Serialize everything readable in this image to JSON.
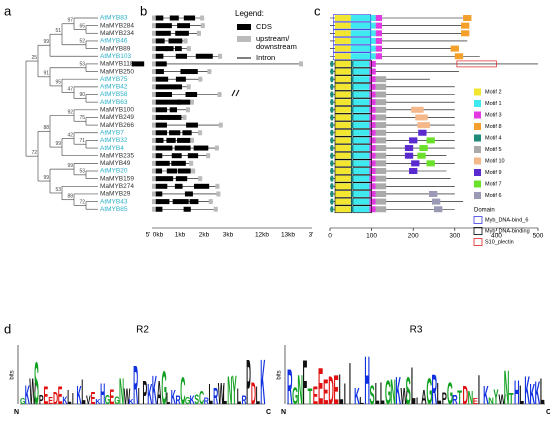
{
  "panels": {
    "a": "a",
    "b": "b",
    "c": "c",
    "d": "d"
  },
  "genes": [
    {
      "name": "AtMYB83",
      "at": true
    },
    {
      "name": "MaMYB284",
      "at": false
    },
    {
      "name": "MaMYB234",
      "at": false
    },
    {
      "name": "AtMYB46",
      "at": true
    },
    {
      "name": "MaMYB89",
      "at": false
    },
    {
      "name": "AtMYB103",
      "at": true
    },
    {
      "name": "MaMYB118",
      "at": false
    },
    {
      "name": "MaMYB250",
      "at": false
    },
    {
      "name": "AtMYB75",
      "at": true
    },
    {
      "name": "AtMYB42",
      "at": true
    },
    {
      "name": "AtMYB58",
      "at": true
    },
    {
      "name": "AtMYB63",
      "at": true
    },
    {
      "name": "MaMYB100",
      "at": false
    },
    {
      "name": "MaMYB249",
      "at": false
    },
    {
      "name": "MaMYB266",
      "at": false
    },
    {
      "name": "AtMYB7",
      "at": true
    },
    {
      "name": "AtMYB32",
      "at": true
    },
    {
      "name": "AtMYB4",
      "at": true
    },
    {
      "name": "MaMYB235",
      "at": false
    },
    {
      "name": "MaMYB49",
      "at": false
    },
    {
      "name": "AtMYB20",
      "at": true
    },
    {
      "name": "MaMYB159",
      "at": false
    },
    {
      "name": "MaMYB274",
      "at": false
    },
    {
      "name": "MaMYB29",
      "at": false
    },
    {
      "name": "AtMYB43",
      "at": true
    },
    {
      "name": "AtMYB85",
      "at": true
    }
  ],
  "bootstrap": [
    "65",
    "97",
    "52",
    "51",
    "99",
    "53",
    "90",
    "47",
    "95",
    "91",
    "25",
    "75",
    "92",
    "71",
    "42",
    "99",
    "88",
    "53",
    "99",
    "72",
    "88",
    "53",
    "99",
    "72"
  ],
  "gene_legend": {
    "title": "Legend:",
    "cds": "CDS",
    "utr": "upstream/\ndownstream",
    "intron": "Intron"
  },
  "gene_axis": [
    "5'",
    "0kb",
    "1kb",
    "2kb",
    "3kb",
    "12kb",
    "13kb",
    "3'"
  ],
  "protein_axis": [
    "0",
    "100",
    "200",
    "300",
    "400",
    "500"
  ],
  "motifs": [
    {
      "name": "Motif 2",
      "color": "#f2e630"
    },
    {
      "name": "Motif 1",
      "color": "#3eeaf0"
    },
    {
      "name": "Motif 3",
      "color": "#e03ae0"
    },
    {
      "name": "Motif 8",
      "color": "#f5a02a"
    },
    {
      "name": "Motif 4",
      "color": "#1f8a7a"
    },
    {
      "name": "Motif 5",
      "color": "#aaaaaa"
    },
    {
      "name": "Motif 10",
      "color": "#f5b88a"
    },
    {
      "name": "Motif 9",
      "color": "#5a2ad0"
    },
    {
      "name": "Motif 7",
      "color": "#6ae02a"
    },
    {
      "name": "Motif 6",
      "color": "#9a9ab4"
    }
  ],
  "domain_legend": {
    "title": "Domain",
    "items": [
      {
        "name": "Myb_DNA-bind_6",
        "color": "#3a3ae0"
      },
      {
        "name": "Myb_DNA-binding",
        "color": "#000000"
      },
      {
        "name": "S10_plectin",
        "color": "#e02020"
      }
    ]
  },
  "logo": {
    "bits": "bits",
    "n": "N",
    "c": "C",
    "r2": {
      "title": "R2",
      "letters": [
        "G",
        "K",
        "W",
        "S",
        "P",
        "E",
        "E",
        "D",
        "E",
        "K",
        "L",
        "I",
        "K",
        "L",
        "V",
        "E",
        "K",
        "H",
        "G",
        "E",
        "G",
        "N",
        "W",
        "K",
        "R",
        "I",
        "P",
        "K",
        "K",
        "A",
        "G",
        "L",
        "K",
        "R",
        "C",
        "G",
        "K",
        "S",
        "C",
        "R",
        "L",
        "R",
        "W",
        "L",
        "N",
        "Y",
        "L",
        "R",
        "P",
        "D",
        "L",
        "K"
      ]
    },
    "r3": {
      "title": "R3",
      "letters": [
        "R",
        "G",
        "N",
        "F",
        "T",
        "E",
        "E",
        "E",
        "D",
        "E",
        "L",
        "I",
        "I",
        "K",
        "L",
        "H",
        "S",
        "L",
        "L",
        "G",
        "N",
        "K",
        "W",
        "S",
        "L",
        "I",
        "A",
        "G",
        "R",
        "L",
        "P",
        "G",
        "R",
        "T",
        "D",
        "N",
        "E",
        "I",
        "K",
        "N",
        "Y",
        "W",
        "N",
        "T",
        "H",
        "L",
        "K",
        "K",
        "K",
        "L"
      ]
    }
  }
}
